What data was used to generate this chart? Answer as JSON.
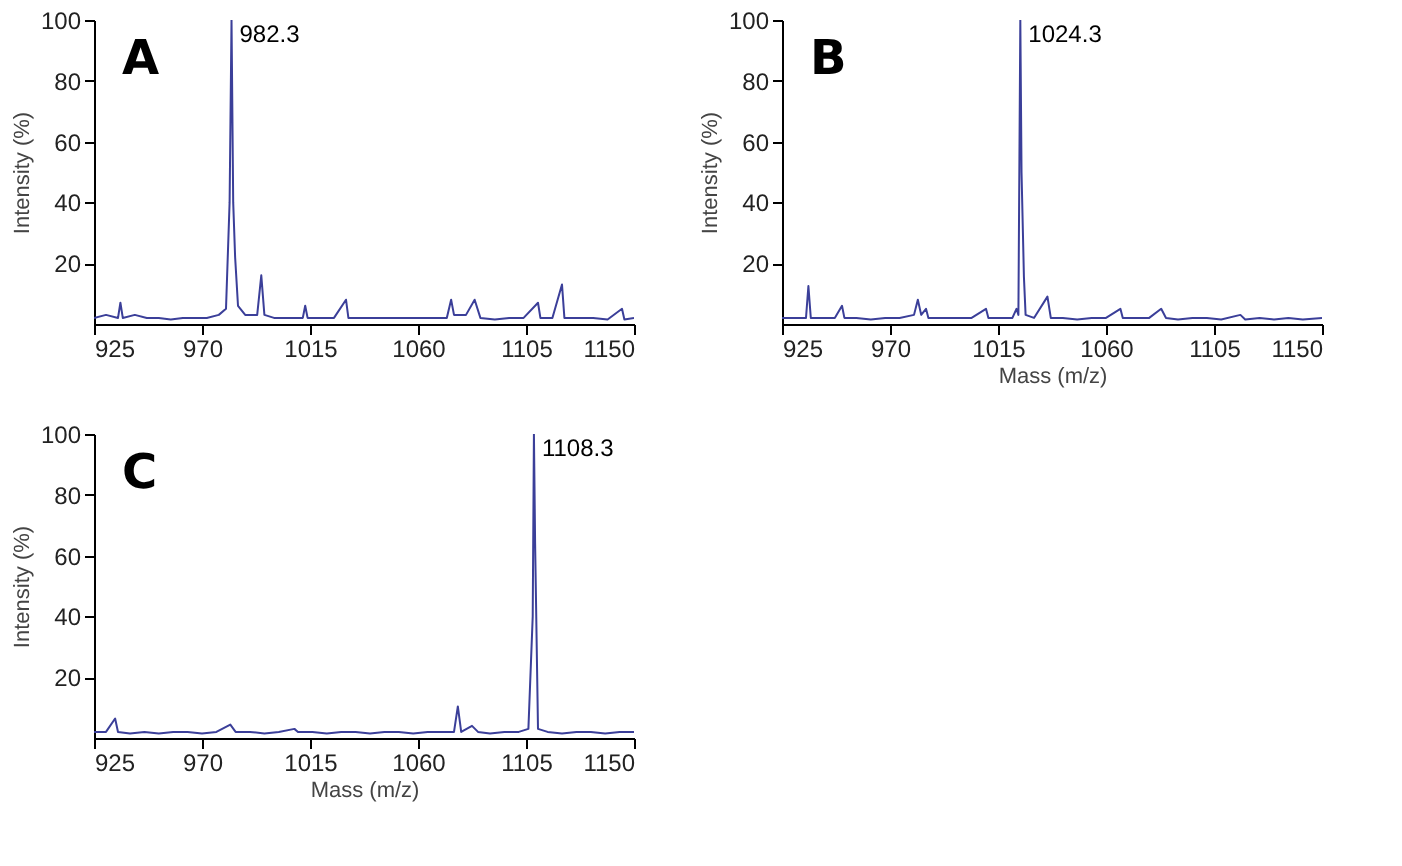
{
  "chart_data": [
    {
      "type": "line",
      "title": "A",
      "ylabel": "Intensity (%)",
      "color": "#3b3f99",
      "x": [
        925,
        930,
        935,
        936,
        937,
        942,
        947,
        952,
        957,
        962,
        967,
        972,
        977,
        980,
        981.5,
        982.3,
        983,
        983.8,
        985,
        988,
        993,
        994.7,
        996,
        1000,
        1005,
        1012,
        1013,
        1014,
        1020,
        1025,
        1030,
        1031,
        1037,
        1043,
        1048,
        1054,
        1060,
        1066,
        1072,
        1073.8,
        1075,
        1080,
        1083.6,
        1086,
        1092,
        1098,
        1104,
        1110,
        1111,
        1116,
        1120,
        1121,
        1127,
        1133,
        1139,
        1145,
        1146,
        1150
      ],
      "values": [
        2,
        3,
        2,
        7,
        2,
        3,
        2,
        2,
        1.5,
        2,
        2,
        2,
        3,
        5,
        40,
        100,
        40,
        22,
        6,
        3,
        3,
        16,
        3,
        2,
        2,
        2,
        6,
        2,
        2,
        2,
        8,
        2,
        2,
        2,
        2,
        2,
        2,
        2,
        2,
        8,
        3,
        3,
        8,
        2,
        1.5,
        2,
        2,
        7,
        2,
        2,
        13,
        2,
        2,
        2,
        1.5,
        5,
        1.5,
        2
      ],
      "xlim": [
        925,
        1150
      ],
      "xticks": [
        925,
        970,
        1015,
        1060,
        1105,
        1150
      ],
      "ylim": [
        0,
        100
      ],
      "yticks": [
        20,
        40,
        60,
        80,
        100
      ],
      "annotations": [
        {
          "text": "982.3",
          "x": 982.3,
          "y": 100
        }
      ]
    },
    {
      "type": "line",
      "title": "B",
      "xlabel": "Mass (m/z)",
      "ylabel": "Intensity (%)",
      "color": "#3b3f99",
      "x": [
        925,
        930,
        935,
        936,
        937,
        942,
        947,
        950,
        951,
        956,
        962,
        968,
        974,
        980,
        981.6,
        983,
        985,
        986,
        992,
        998,
        1004,
        1010,
        1011,
        1016,
        1021,
        1022.7,
        1023.5,
        1024.3,
        1024.8,
        1025.8,
        1026.5,
        1030,
        1035.6,
        1037,
        1042,
        1048,
        1054,
        1060,
        1066,
        1067,
        1072,
        1078,
        1083,
        1085,
        1090,
        1096,
        1102,
        1108,
        1116,
        1118,
        1124,
        1130,
        1136,
        1142,
        1150
      ],
      "values": [
        2,
        2,
        2,
        12.5,
        2,
        2,
        2,
        6,
        2,
        2,
        1.5,
        2,
        2,
        3,
        8,
        3,
        5,
        2,
        2,
        2,
        2,
        5,
        2,
        2,
        2,
        5,
        3,
        100,
        50,
        15.5,
        3,
        2,
        9,
        2,
        2,
        1.5,
        2,
        2,
        5,
        2,
        2,
        2,
        5,
        2,
        1.5,
        2,
        2,
        1.5,
        3,
        1.5,
        2,
        1.5,
        2,
        1.5,
        2
      ],
      "xlim": [
        925,
        1150
      ],
      "xticks": [
        925,
        970,
        1015,
        1060,
        1105,
        1150
      ],
      "ylim": [
        0,
        100
      ],
      "yticks": [
        20,
        40,
        60,
        80,
        100
      ],
      "annotations": [
        {
          "text": "1024.3",
          "x": 1024.3,
          "y": 100
        }
      ]
    },
    {
      "type": "line",
      "title": "C",
      "xlabel": "Mass (m/z)",
      "ylabel": "Intensity (%)",
      "color": "#3b3f99",
      "x": [
        925,
        930,
        933.8,
        935,
        940,
        946,
        952,
        958,
        964,
        970,
        976,
        981.8,
        984,
        990,
        996,
        1002,
        1008.5,
        1010,
        1016,
        1022,
        1028,
        1034,
        1040,
        1046,
        1052,
        1058,
        1064,
        1070,
        1075,
        1076.6,
        1078,
        1082.5,
        1085,
        1090,
        1096,
        1102,
        1106,
        1107.8,
        1108.3,
        1108.8,
        1110,
        1114,
        1120,
        1126,
        1132,
        1138,
        1144,
        1150
      ],
      "values": [
        2,
        2,
        6.4,
        2,
        1.5,
        2,
        1.5,
        2,
        2,
        1.5,
        2,
        4.4,
        2,
        2,
        1.5,
        2,
        3,
        2,
        2,
        1.5,
        2,
        2,
        1.5,
        2,
        2,
        1.5,
        2,
        2,
        2,
        10.4,
        2,
        4,
        2,
        1.5,
        2,
        2,
        3,
        40,
        100,
        64,
        3,
        2,
        1.5,
        2,
        2,
        1.5,
        2,
        2
      ],
      "xlim": [
        925,
        1150
      ],
      "xticks": [
        925,
        970,
        1015,
        1060,
        1105,
        1150
      ],
      "ylim": [
        0,
        100
      ],
      "yticks": [
        20,
        40,
        60,
        80,
        100
      ],
      "annotations": [
        {
          "text": "1108.3",
          "x": 1108.3,
          "y": 100
        }
      ]
    }
  ]
}
